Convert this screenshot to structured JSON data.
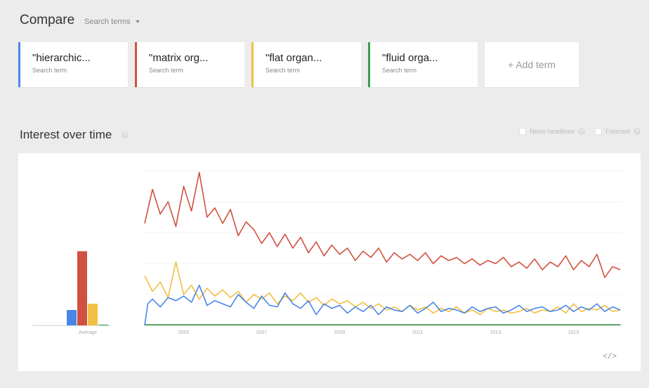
{
  "compare": {
    "title": "Compare",
    "subtitle": "Search terms"
  },
  "terms": [
    {
      "label": "\"hierarchic...",
      "sub": "Search term",
      "color": "#4a86e8"
    },
    {
      "label": "\"matrix org...",
      "sub": "Search term",
      "color": "#d15140"
    },
    {
      "label": "\"flat organ...",
      "sub": "Search term",
      "color": "#f1bf42"
    },
    {
      "label": "\"fluid orga...",
      "sub": "Search term",
      "color": "#3f9c50"
    }
  ],
  "add_term": "+ Add term",
  "interest": {
    "title": "Interest over time",
    "help": "?"
  },
  "options": {
    "news": "News headlines",
    "forecast": "Forecast",
    "help": "?"
  },
  "embed": "</>",
  "chart_data": {
    "type": "line",
    "x_start": 2004,
    "x_end": 2016.25,
    "x_ticks": [
      "2005",
      "2007",
      "2009",
      "2011",
      "2013",
      "2015"
    ],
    "average_label": "Average",
    "ylim": [
      0,
      100
    ],
    "grid": true,
    "series": [
      {
        "color": "#4a86e8",
        "average": 10,
        "x": [
          2004,
          2004.08,
          2004.2,
          2004.4,
          2004.6,
          2004.8,
          2005,
          2005.2,
          2005.4,
          2005.6,
          2005.8,
          2006,
          2006.2,
          2006.4,
          2006.6,
          2006.8,
          2007,
          2007.2,
          2007.4,
          2007.6,
          2007.8,
          2008,
          2008.2,
          2008.4,
          2008.6,
          2008.8,
          2009,
          2009.2,
          2009.4,
          2009.6,
          2009.8,
          2010,
          2010.2,
          2010.4,
          2010.6,
          2010.8,
          2011,
          2011.2,
          2011.4,
          2011.6,
          2011.8,
          2012,
          2012.2,
          2012.4,
          2012.6,
          2012.8,
          2013,
          2013.2,
          2013.4,
          2013.6,
          2013.8,
          2014,
          2014.2,
          2014.4,
          2014.6,
          2014.8,
          2015,
          2015.2,
          2015.4,
          2015.6,
          2015.8,
          2016,
          2016.2
        ],
        "values": [
          0,
          14,
          17,
          12,
          18,
          16,
          19,
          15,
          26,
          13,
          16,
          14,
          12,
          20,
          15,
          11,
          19,
          13,
          12,
          21,
          14,
          11,
          16,
          7,
          14,
          11,
          13,
          8,
          12,
          9,
          13,
          7,
          12,
          10,
          9,
          13,
          8,
          11,
          15,
          9,
          11,
          10,
          8,
          12,
          9,
          11,
          12,
          8,
          10,
          13,
          9,
          11,
          12,
          9,
          10,
          13,
          9,
          12,
          10,
          14,
          9,
          12,
          10
        ]
      },
      {
        "color": "#d15140",
        "average": 48,
        "x": [
          2004,
          2004.2,
          2004.4,
          2004.6,
          2004.8,
          2005,
          2005.2,
          2005.4,
          2005.6,
          2005.8,
          2006,
          2006.2,
          2006.4,
          2006.6,
          2006.8,
          2007,
          2007.2,
          2007.4,
          2007.6,
          2007.8,
          2008,
          2008.2,
          2008.4,
          2008.6,
          2008.8,
          2009,
          2009.2,
          2009.4,
          2009.6,
          2009.8,
          2010,
          2010.2,
          2010.4,
          2010.6,
          2010.8,
          2011,
          2011.2,
          2011.4,
          2011.6,
          2011.8,
          2012,
          2012.2,
          2012.4,
          2012.6,
          2012.8,
          2013,
          2013.2,
          2013.4,
          2013.6,
          2013.8,
          2014,
          2014.2,
          2014.4,
          2014.6,
          2014.8,
          2015,
          2015.2,
          2015.4,
          2015.6,
          2015.8,
          2016,
          2016.2
        ],
        "values": [
          66,
          88,
          72,
          80,
          64,
          90,
          74,
          99,
          70,
          76,
          66,
          75,
          58,
          67,
          62,
          53,
          60,
          51,
          59,
          50,
          57,
          47,
          54,
          45,
          52,
          46,
          50,
          42,
          48,
          44,
          50,
          41,
          47,
          43,
          46,
          42,
          47,
          40,
          45,
          42,
          44,
          40,
          43,
          39,
          42,
          40,
          44,
          38,
          41,
          37,
          43,
          36,
          41,
          38,
          45,
          36,
          42,
          38,
          46,
          31,
          38,
          36
        ]
      },
      {
        "color": "#f1bf42",
        "average": 14,
        "x": [
          2004,
          2004.2,
          2004.4,
          2004.6,
          2004.8,
          2005,
          2005.2,
          2005.4,
          2005.6,
          2005.8,
          2006,
          2006.2,
          2006.4,
          2006.6,
          2006.8,
          2007,
          2007.2,
          2007.4,
          2007.6,
          2007.8,
          2008,
          2008.2,
          2008.4,
          2008.6,
          2008.8,
          2009,
          2009.2,
          2009.4,
          2009.6,
          2009.8,
          2010,
          2010.2,
          2010.4,
          2010.6,
          2010.8,
          2011,
          2011.2,
          2011.4,
          2011.6,
          2011.8,
          2012,
          2012.2,
          2012.4,
          2012.6,
          2012.8,
          2013,
          2013.2,
          2013.4,
          2013.6,
          2013.8,
          2014,
          2014.2,
          2014.4,
          2014.6,
          2014.8,
          2015,
          2015.2,
          2015.4,
          2015.6,
          2015.8,
          2016,
          2016.2
        ],
        "values": [
          32,
          22,
          28,
          18,
          41,
          20,
          26,
          17,
          24,
          19,
          23,
          18,
          22,
          15,
          20,
          17,
          21,
          14,
          19,
          16,
          21,
          15,
          18,
          13,
          17,
          14,
          16,
          12,
          15,
          11,
          14,
          10,
          12,
          9,
          13,
          10,
          12,
          8,
          11,
          9,
          12,
          8,
          10,
          7,
          11,
          9,
          10,
          8,
          9,
          11,
          8,
          10,
          9,
          12,
          8,
          14,
          9,
          11,
          10,
          13,
          9,
          10
        ]
      },
      {
        "color": "#3f9c50",
        "average": 0.5,
        "x": [
          2004,
          2016.2
        ],
        "values": [
          0.5,
          0.5
        ]
      }
    ]
  }
}
